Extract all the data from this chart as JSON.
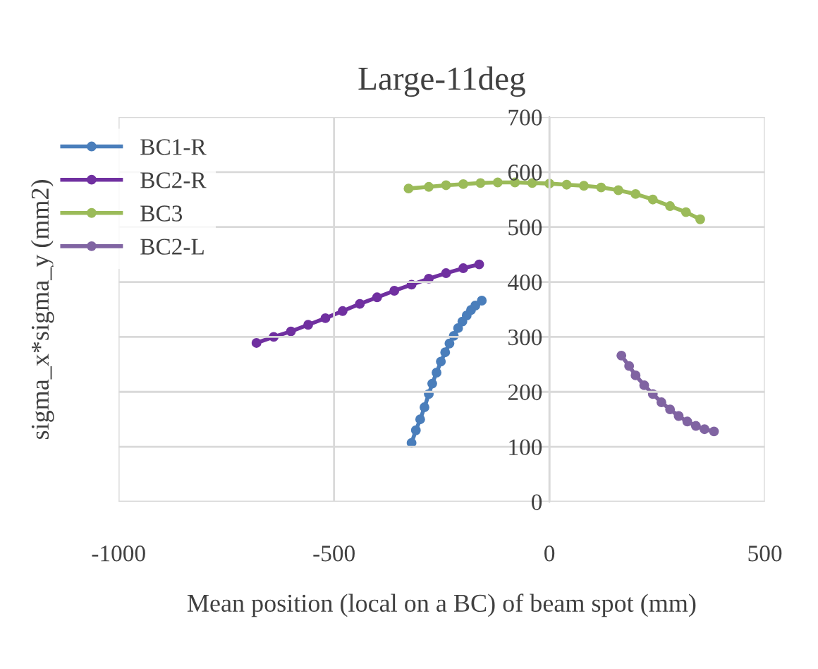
{
  "chart_data": {
    "type": "line",
    "title": "Large-11deg",
    "xlabel": "Mean position (local on a BC) of beam spot (mm)",
    "ylabel": "sigma_x*sigma_y (mm2)",
    "xlim": [
      -1000,
      500
    ],
    "xticks": [
      -1000,
      -500,
      0,
      500
    ],
    "ylim": [
      0,
      700
    ],
    "yticks": [
      0,
      100,
      200,
      300,
      400,
      500,
      600,
      700
    ],
    "grid": true,
    "legend": "top left",
    "marker": "circle",
    "line_style": "solid",
    "series": [
      {
        "name": "BC1-R",
        "color": "#4a7ebb",
        "x": [
          -320,
          -310,
          -300,
          -290,
          -280,
          -272,
          -262,
          -252,
          -242,
          -232,
          -222,
          -212,
          -202,
          -192,
          -182,
          -172,
          -157
        ],
        "values": [
          107,
          130,
          150,
          172,
          196,
          215,
          235,
          255,
          272,
          288,
          302,
          316,
          328,
          339,
          349,
          357,
          366
        ]
      },
      {
        "name": "BC2-R",
        "color": "#7030a0",
        "x": [
          -680,
          -640,
          -600,
          -560,
          -520,
          -480,
          -440,
          -400,
          -360,
          -320,
          -280,
          -240,
          -200,
          -163
        ],
        "values": [
          289,
          300,
          310,
          322,
          334,
          347,
          360,
          372,
          384,
          395,
          406,
          416,
          425,
          432
        ]
      },
      {
        "name": "BC3",
        "color": "#9bbb59",
        "x": [
          -327,
          -280,
          -240,
          -200,
          -160,
          -120,
          -80,
          -40,
          0,
          40,
          80,
          120,
          160,
          200,
          240,
          280,
          317,
          350
        ],
        "values": [
          570,
          573,
          576,
          578,
          580,
          581,
          581,
          580,
          579,
          577,
          575,
          572,
          567,
          560,
          550,
          538,
          527,
          514
        ]
      },
      {
        "name": "BC2-L",
        "color": "#8064a2",
        "x": [
          167,
          185,
          200,
          220,
          240,
          260,
          280,
          300,
          320,
          340,
          360,
          382
        ],
        "values": [
          266,
          247,
          230,
          212,
          196,
          181,
          168,
          156,
          146,
          138,
          132,
          128
        ]
      }
    ]
  }
}
